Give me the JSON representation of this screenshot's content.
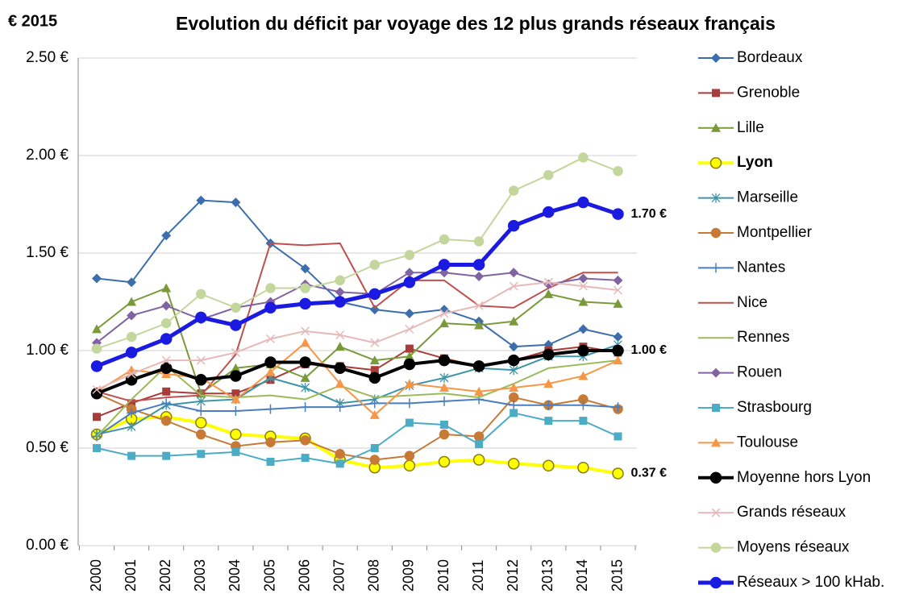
{
  "chart_data": {
    "type": "line",
    "title": "Evolution du déficit par voyage des 12 plus grands réseaux français",
    "y_axis_label": "€ 2015",
    "categories": [
      "2000",
      "2001",
      "2002",
      "2003",
      "2004",
      "2005",
      "2006",
      "2007",
      "2008",
      "2009",
      "2010",
      "2011",
      "2012",
      "2013",
      "2014",
      "2015"
    ],
    "ylim": [
      0,
      2.5
    ],
    "yticks": [
      {
        "value": 0,
        "label": "0.00 €"
      },
      {
        "value": 0.5,
        "label": "0.50 €"
      },
      {
        "value": 1,
        "label": "1.00 €"
      },
      {
        "value": 1.5,
        "label": "1.50 €"
      },
      {
        "value": 2,
        "label": "2.00 €"
      },
      {
        "value": 2.5,
        "label": "2.50 €"
      }
    ],
    "grid": true,
    "legend": "right",
    "series": [
      {
        "name": "Bordeaux",
        "color": "#3c6eab",
        "marker": "diamond",
        "width": 2,
        "values": [
          1.37,
          1.35,
          1.59,
          1.77,
          1.76,
          1.55,
          1.42,
          1.25,
          1.21,
          1.19,
          1.21,
          1.15,
          1.02,
          1.03,
          1.11,
          1.07
        ]
      },
      {
        "name": "Grenoble",
        "color": "#a83c3a",
        "marker": "square",
        "width": 2,
        "values": [
          0.66,
          0.73,
          0.79,
          0.78,
          0.78,
          0.85,
          0.93,
          0.92,
          0.9,
          1.01,
          0.96,
          0.92,
          0.95,
          1.0,
          1.02,
          0.99
        ]
      },
      {
        "name": "Lille",
        "color": "#7a9a3a",
        "marker": "triangle",
        "width": 2,
        "values": [
          1.11,
          1.25,
          1.32,
          0.78,
          0.91,
          0.93,
          0.86,
          1.02,
          0.95,
          0.97,
          1.14,
          1.13,
          1.15,
          1.29,
          1.25,
          1.24
        ]
      },
      {
        "name": "Lyon",
        "color": "#ffff00",
        "marker": "circle",
        "width": 4,
        "bold": true,
        "values": [
          0.57,
          0.65,
          0.66,
          0.63,
          0.57,
          0.56,
          0.55,
          0.44,
          0.4,
          0.41,
          0.43,
          0.44,
          0.42,
          0.41,
          0.4,
          0.37
        ],
        "value_labels": [
          null,
          null,
          null,
          null,
          null,
          null,
          null,
          null,
          null,
          null,
          null,
          null,
          null,
          null,
          null,
          "0.37 €"
        ]
      },
      {
        "name": "Marseille",
        "color": "#3e95a8",
        "marker": "star",
        "width": 2,
        "values": [
          0.57,
          0.61,
          0.72,
          0.74,
          0.75,
          0.86,
          0.81,
          0.73,
          0.75,
          0.82,
          0.86,
          0.91,
          0.9,
          0.97,
          0.97,
          1.03
        ]
      },
      {
        "name": "Montpellier",
        "color": "#c77a35",
        "marker": "circle",
        "width": 2,
        "values": [
          0.78,
          0.7,
          0.64,
          0.57,
          0.51,
          0.53,
          0.54,
          0.47,
          0.44,
          0.46,
          0.57,
          0.56,
          0.76,
          0.72,
          0.75,
          0.7
        ]
      },
      {
        "name": "Nantes",
        "color": "#4a7ec0",
        "marker": "plus",
        "width": 2,
        "values": [
          0.56,
          0.68,
          0.73,
          0.69,
          0.69,
          0.7,
          0.71,
          0.71,
          0.73,
          0.73,
          0.74,
          0.75,
          0.72,
          0.72,
          0.72,
          0.71
        ]
      },
      {
        "name": "Nice",
        "color": "#c0504d",
        "marker": "none",
        "width": 2,
        "values": [
          0.79,
          0.74,
          0.76,
          0.77,
          0.98,
          1.55,
          1.54,
          1.55,
          1.22,
          1.36,
          1.36,
          1.23,
          1.22,
          1.32,
          1.4,
          1.4
        ]
      },
      {
        "name": "Rennes",
        "color": "#9bbb59",
        "marker": "none",
        "width": 2,
        "values": [
          0.56,
          0.75,
          0.92,
          0.77,
          0.76,
          0.77,
          0.75,
          0.82,
          0.76,
          0.77,
          0.78,
          0.76,
          0.83,
          0.91,
          0.93,
          0.95
        ]
      },
      {
        "name": "Rouen",
        "color": "#8064a2",
        "marker": "diamond",
        "width": 2,
        "values": [
          1.04,
          1.18,
          1.23,
          1.16,
          1.22,
          1.25,
          1.34,
          1.3,
          1.29,
          1.4,
          1.4,
          1.38,
          1.4,
          1.34,
          1.37,
          1.36
        ]
      },
      {
        "name": "Strasbourg",
        "color": "#4bacc6",
        "marker": "square",
        "width": 2,
        "values": [
          0.5,
          0.46,
          0.46,
          0.47,
          0.48,
          0.43,
          0.45,
          0.42,
          0.5,
          0.63,
          0.62,
          0.52,
          0.68,
          0.64,
          0.64,
          0.56
        ]
      },
      {
        "name": "Toulouse",
        "color": "#f79646",
        "marker": "triangle",
        "width": 2,
        "values": [
          0.79,
          0.9,
          0.88,
          0.86,
          0.75,
          0.89,
          1.04,
          0.83,
          0.67,
          0.83,
          0.81,
          0.79,
          0.81,
          0.83,
          0.87,
          0.95
        ]
      },
      {
        "name": "Moyenne hors Lyon",
        "color": "#000000",
        "marker": "circle",
        "width": 4,
        "values": [
          0.78,
          0.85,
          0.91,
          0.85,
          0.87,
          0.94,
          0.94,
          0.91,
          0.86,
          0.93,
          0.95,
          0.92,
          0.95,
          0.98,
          1.0,
          1.0
        ],
        "value_labels": [
          null,
          null,
          null,
          null,
          null,
          null,
          null,
          null,
          null,
          null,
          null,
          null,
          null,
          null,
          null,
          "1.00 €"
        ]
      },
      {
        "name": "Grands réseaux",
        "color": "#e6b9b8",
        "marker": "x",
        "width": 2,
        "values": [
          0.8,
          0.88,
          0.95,
          0.95,
          0.99,
          1.06,
          1.1,
          1.08,
          1.04,
          1.11,
          1.19,
          1.23,
          1.33,
          1.35,
          1.33,
          1.31
        ]
      },
      {
        "name": "Moyens réseaux",
        "color": "#c3d69b",
        "marker": "circle",
        "width": 2,
        "values": [
          1.01,
          1.07,
          1.14,
          1.29,
          1.22,
          1.32,
          1.32,
          1.36,
          1.44,
          1.49,
          1.57,
          1.56,
          1.82,
          1.9,
          1.99,
          1.92
        ]
      },
      {
        "name": "Réseaux > 100 kHab.",
        "color": "#1a1ae0",
        "marker": "circle",
        "width": 5,
        "values": [
          0.92,
          0.99,
          1.06,
          1.17,
          1.13,
          1.22,
          1.24,
          1.25,
          1.29,
          1.35,
          1.44,
          1.44,
          1.64,
          1.71,
          1.76,
          1.7
        ],
        "value_labels": [
          null,
          null,
          null,
          null,
          null,
          null,
          null,
          null,
          null,
          null,
          null,
          null,
          null,
          null,
          null,
          "1.70 €"
        ]
      }
    ]
  }
}
